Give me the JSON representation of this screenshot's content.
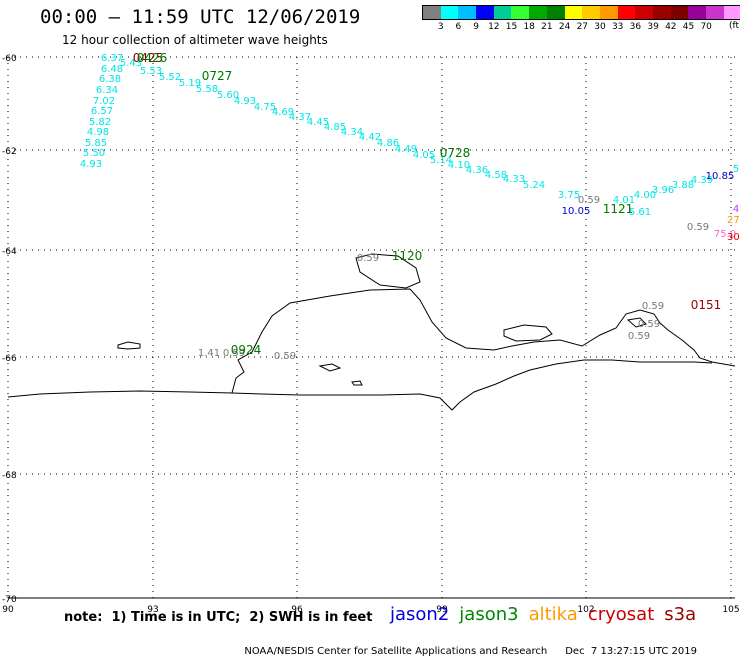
{
  "header": {
    "title": "00:00 – 11:59 UTC 12/06/2019",
    "subtitle": "12 hour collection of altimeter wave heights"
  },
  "colorbar": {
    "colors": [
      "#808080",
      "#00ffff",
      "#00bfff",
      "#0000ff",
      "#00cc99",
      "#33ff33",
      "#00aa00",
      "#008000",
      "#ffff00",
      "#ffcc00",
      "#ff9900",
      "#ff0000",
      "#cc0000",
      "#990000",
      "#800000",
      "#990099",
      "#cc33cc",
      "#ff99ff",
      "#000000"
    ],
    "labels": [
      "3",
      "6",
      "9",
      "12",
      "15",
      "18",
      "21",
      "24",
      "27",
      "30",
      "33",
      "36",
      "39",
      "42",
      "45",
      "70"
    ],
    "unit": "(ft)"
  },
  "map": {
    "lat_labels": [
      "-60",
      "-62",
      "-64",
      "-66",
      "-68",
      "-70"
    ],
    "lon_labels": [
      "90",
      "93",
      "96",
      "99",
      "102",
      "105"
    ],
    "track_colors": {
      "cyan": "#00e5e5",
      "grey": "#777777",
      "blue": "#0000cc",
      "green": "#007700",
      "darkred": "#990000",
      "orange": "#ff9900",
      "pink": "#ff66cc",
      "violet": "#cc33ff",
      "red": "#ee0000"
    }
  },
  "observations": [
    {
      "t": "6.37",
      "c": "cyan"
    },
    {
      "t": "6.48",
      "c": "cyan"
    },
    {
      "t": "6.38",
      "c": "cyan"
    },
    {
      "t": "6.34",
      "c": "cyan"
    },
    {
      "t": "7.02",
      "c": "cyan"
    },
    {
      "t": "6.57",
      "c": "cyan"
    },
    {
      "t": "5.82",
      "c": "cyan"
    },
    {
      "t": "4.98",
      "c": "cyan"
    },
    {
      "t": "5.85",
      "c": "cyan"
    },
    {
      "t": "5.50",
      "c": "cyan"
    },
    {
      "t": "4.93",
      "c": "cyan"
    },
    {
      "t": "5.43",
      "c": "cyan"
    },
    {
      "t": "5.53",
      "c": "cyan"
    },
    {
      "t": "5.52",
      "c": "cyan"
    },
    {
      "t": "5.19",
      "c": "cyan"
    },
    {
      "t": "5.58",
      "c": "cyan"
    },
    {
      "t": "5.60",
      "c": "cyan"
    },
    {
      "t": "4.93",
      "c": "cyan"
    },
    {
      "t": "4.75",
      "c": "cyan"
    },
    {
      "t": "4.69",
      "c": "cyan"
    },
    {
      "t": "4.37",
      "c": "cyan"
    },
    {
      "t": "4.45",
      "c": "cyan"
    },
    {
      "t": "4.85",
      "c": "cyan"
    },
    {
      "t": "4.34",
      "c": "cyan"
    },
    {
      "t": "4.42",
      "c": "cyan"
    },
    {
      "t": "4.86",
      "c": "cyan"
    },
    {
      "t": "4.49",
      "c": "cyan"
    },
    {
      "t": "4.05",
      "c": "cyan"
    },
    {
      "t": "5.14",
      "c": "cyan"
    },
    {
      "t": "4.10",
      "c": "cyan"
    },
    {
      "t": "4.36",
      "c": "cyan"
    },
    {
      "t": "4.58",
      "c": "cyan"
    },
    {
      "t": "4.33",
      "c": "cyan"
    },
    {
      "t": "5.24",
      "c": "cyan"
    },
    {
      "t": "3.75",
      "c": "cyan"
    },
    {
      "t": "0.59",
      "c": "grey"
    },
    {
      "t": "10.05",
      "c": "blue"
    },
    {
      "t": "4.01",
      "c": "cyan"
    },
    {
      "t": "4.00",
      "c": "cyan"
    },
    {
      "t": "3.96",
      "c": "cyan"
    },
    {
      "t": "3.88",
      "c": "cyan"
    },
    {
      "t": "4.39",
      "c": "cyan"
    },
    {
      "t": "10.85",
      "c": "blue"
    },
    {
      "t": "5.61",
      "c": "cyan"
    },
    {
      "t": "0.59",
      "c": "grey"
    },
    {
      "t": "27.",
      "c": "orange"
    },
    {
      "t": "75.0",
      "c": "pink"
    },
    {
      "t": "30.",
      "c": "red"
    },
    {
      "t": "4",
      "c": "violet"
    },
    {
      "t": "5",
      "c": "cyan"
    },
    {
      "t": "0.59",
      "c": "grey"
    },
    {
      "t": "0.59",
      "c": "grey"
    },
    {
      "t": "0.59",
      "c": "grey"
    },
    {
      "t": "0.59",
      "c": "grey"
    },
    {
      "t": "1.41",
      "c": "grey"
    },
    {
      "t": "0.59",
      "c": "grey"
    },
    {
      "t": "0.59",
      "c": "grey"
    }
  ],
  "time_labels": [
    {
      "t": "0425",
      "c": "darkred"
    },
    {
      "t": "0426",
      "c": "green"
    },
    {
      "t": "0727",
      "c": "green"
    },
    {
      "t": "0728",
      "c": "green"
    },
    {
      "t": "1120",
      "c": "green"
    },
    {
      "t": "1121",
      "c": "green"
    },
    {
      "t": "0151",
      "c": "darkred"
    },
    {
      "t": "0924",
      "c": "green"
    }
  ],
  "footer": {
    "note": "note:  1) Time is in UTC;  2) SWH is in feet",
    "missions": [
      {
        "name": "jason2",
        "color": "#0000dd"
      },
      {
        "name": "jason3",
        "color": "#008800"
      },
      {
        "name": "altika",
        "color": "#ff9900"
      },
      {
        "name": "cryosat",
        "color": "#cc0000"
      },
      {
        "name": "s3a",
        "color": "#990000"
      }
    ],
    "credit": "NOAA/NESDIS Center for Satellite Applications and Research",
    "timestamp": "Dec  7 13:27:15 UTC 2019"
  }
}
